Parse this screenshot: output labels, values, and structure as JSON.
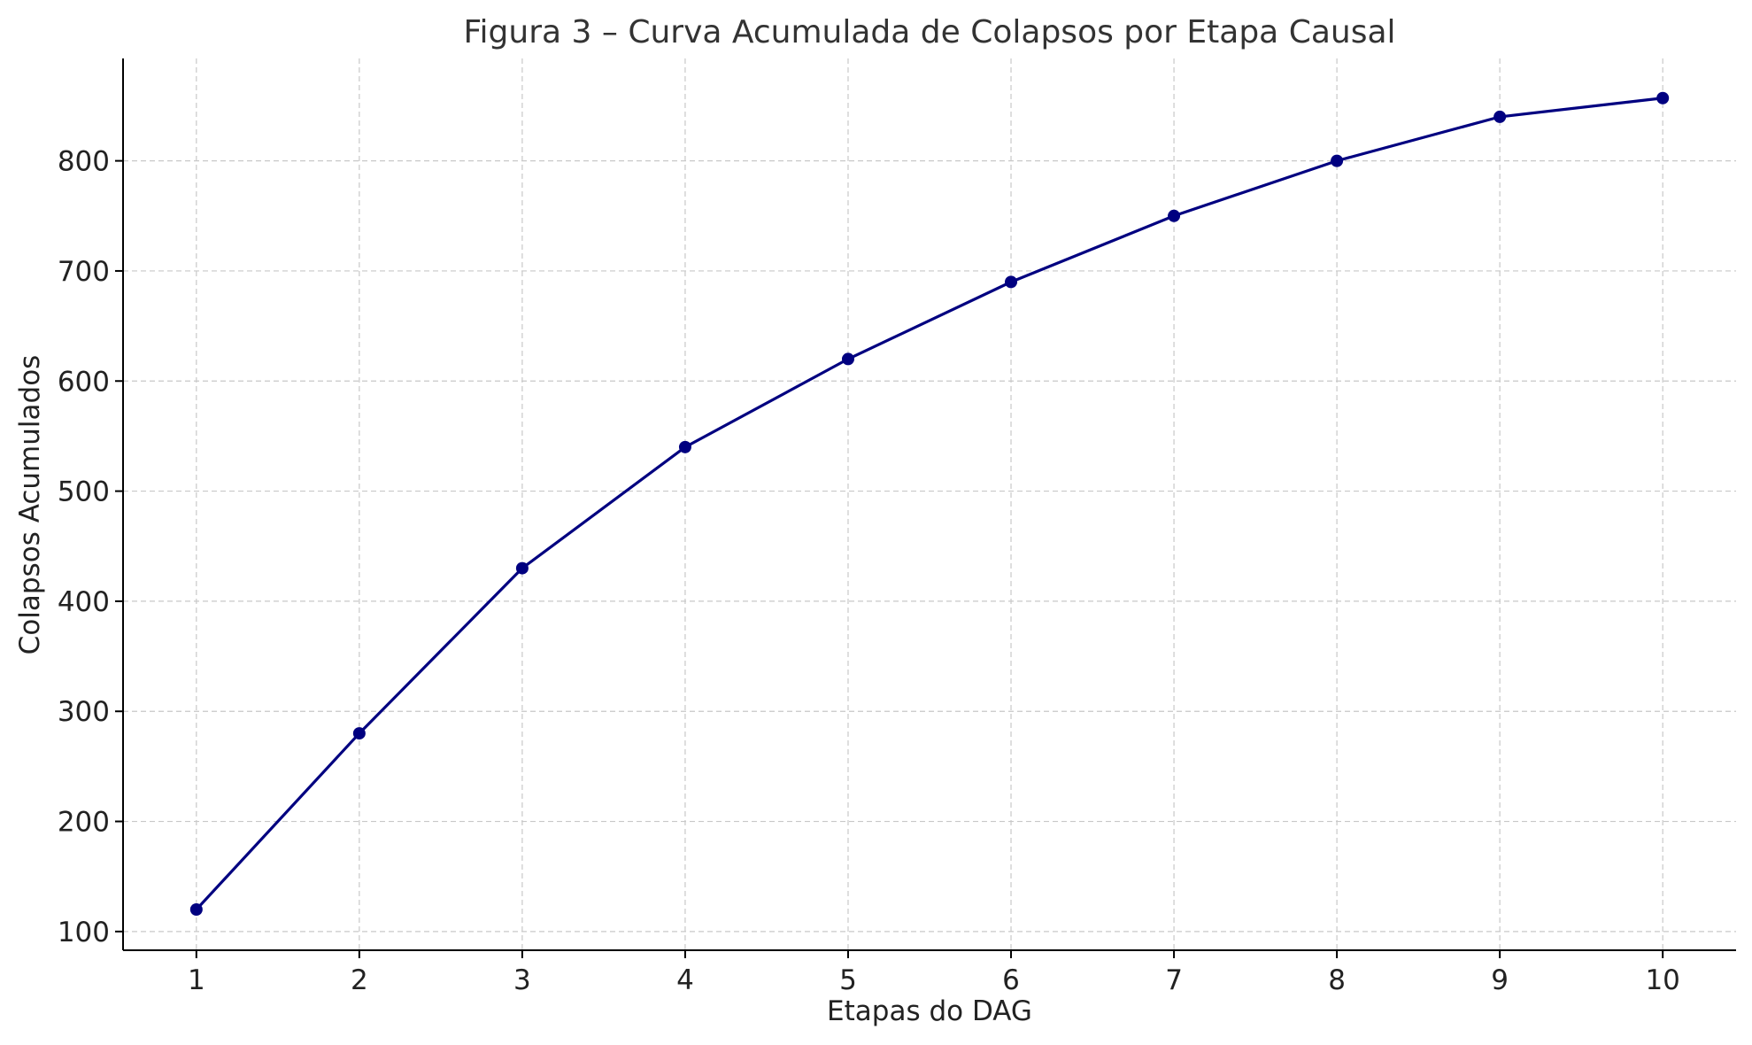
{
  "chart_data": {
    "type": "line",
    "title": "Figura 3 – Curva Acumulada de Colapsos por Etapa Causal",
    "xlabel": "Etapas do DAG",
    "ylabel": "Colapsos Acumulados",
    "x": [
      1,
      2,
      3,
      4,
      5,
      6,
      7,
      8,
      9,
      10
    ],
    "xticks": [
      "1",
      "2",
      "3",
      "4",
      "5",
      "6",
      "7",
      "8",
      "9",
      "10"
    ],
    "yticks": [
      "100",
      "200",
      "300",
      "400",
      "500",
      "600",
      "700",
      "800"
    ],
    "series": [
      {
        "values": [
          120,
          280,
          430,
          540,
          620,
          690,
          750,
          800,
          840,
          857
        ],
        "color": "#000080",
        "marker": "circle"
      }
    ],
    "xlim": [
      0.55,
      10.45
    ],
    "ylim": [
      83,
      893
    ],
    "grid": true,
    "legend": false
  }
}
